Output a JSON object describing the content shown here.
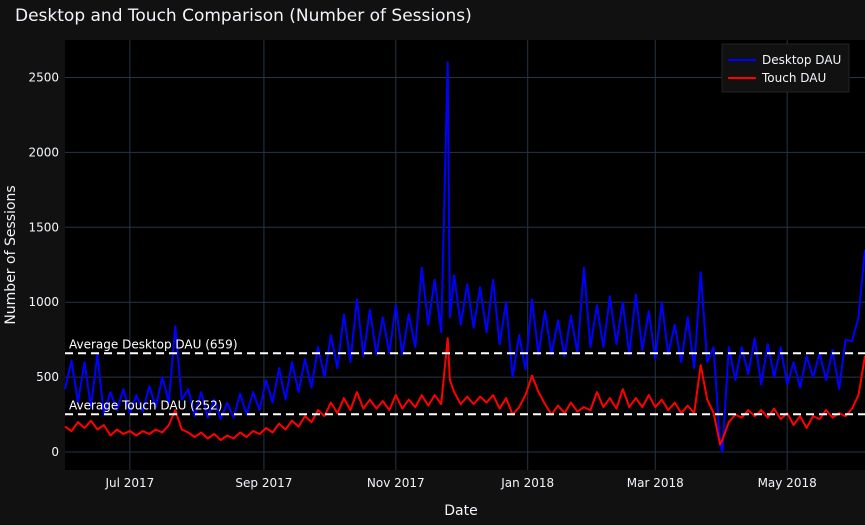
{
  "chart_data": {
    "type": "line",
    "title": "Desktop and Touch Comparison (Number of Sessions)",
    "xlabel": "Date",
    "ylabel": "Number of Sessions",
    "x_range": [
      "2017-06-01",
      "2018-06-06"
    ],
    "ylim": [
      -120,
      2750
    ],
    "x_ticks": [
      {
        "date": "2017-07-01",
        "label": "Jul 2017"
      },
      {
        "date": "2017-09-01",
        "label": "Sep 2017"
      },
      {
        "date": "2017-11-01",
        "label": "Nov 2017"
      },
      {
        "date": "2018-01-01",
        "label": "Jan 2018"
      },
      {
        "date": "2018-03-01",
        "label": "Mar 2018"
      },
      {
        "date": "2018-05-01",
        "label": "May 2018"
      }
    ],
    "y_ticks": [
      0,
      500,
      1000,
      1500,
      2000,
      2500
    ],
    "grid": true,
    "legend_position": "top-right",
    "series": [
      {
        "name": "Desktop DAU",
        "color": "#0000ff",
        "points": [
          [
            "2017-06-01",
            420
          ],
          [
            "2017-06-04",
            610
          ],
          [
            "2017-06-07",
            330
          ],
          [
            "2017-06-10",
            600
          ],
          [
            "2017-06-13",
            300
          ],
          [
            "2017-06-16",
            650
          ],
          [
            "2017-06-19",
            250
          ],
          [
            "2017-06-22",
            400
          ],
          [
            "2017-06-25",
            280
          ],
          [
            "2017-06-28",
            420
          ],
          [
            "2017-07-01",
            260
          ],
          [
            "2017-07-04",
            380
          ],
          [
            "2017-07-07",
            270
          ],
          [
            "2017-07-10",
            440
          ],
          [
            "2017-07-13",
            300
          ],
          [
            "2017-07-16",
            500
          ],
          [
            "2017-07-19",
            330
          ],
          [
            "2017-07-22",
            840
          ],
          [
            "2017-07-25",
            350
          ],
          [
            "2017-07-28",
            420
          ],
          [
            "2017-07-31",
            240
          ],
          [
            "2017-08-03",
            400
          ],
          [
            "2017-08-06",
            230
          ],
          [
            "2017-08-09",
            350
          ],
          [
            "2017-08-12",
            220
          ],
          [
            "2017-08-15",
            330
          ],
          [
            "2017-08-18",
            230
          ],
          [
            "2017-08-21",
            390
          ],
          [
            "2017-08-24",
            250
          ],
          [
            "2017-08-27",
            400
          ],
          [
            "2017-08-30",
            280
          ],
          [
            "2017-09-02",
            480
          ],
          [
            "2017-09-05",
            330
          ],
          [
            "2017-09-08",
            560
          ],
          [
            "2017-09-11",
            350
          ],
          [
            "2017-09-14",
            600
          ],
          [
            "2017-09-17",
            400
          ],
          [
            "2017-09-20",
            620
          ],
          [
            "2017-09-23",
            430
          ],
          [
            "2017-09-26",
            700
          ],
          [
            "2017-09-29",
            500
          ],
          [
            "2017-10-02",
            780
          ],
          [
            "2017-10-05",
            560
          ],
          [
            "2017-10-08",
            920
          ],
          [
            "2017-10-11",
            600
          ],
          [
            "2017-10-14",
            1020
          ],
          [
            "2017-10-17",
            640
          ],
          [
            "2017-10-20",
            950
          ],
          [
            "2017-10-23",
            650
          ],
          [
            "2017-10-26",
            900
          ],
          [
            "2017-10-29",
            660
          ],
          [
            "2017-11-01",
            980
          ],
          [
            "2017-11-04",
            650
          ],
          [
            "2017-11-07",
            920
          ],
          [
            "2017-11-10",
            700
          ],
          [
            "2017-11-13",
            1230
          ],
          [
            "2017-11-16",
            850
          ],
          [
            "2017-11-19",
            1150
          ],
          [
            "2017-11-22",
            800
          ],
          [
            "2017-11-25",
            2600
          ],
          [
            "2017-11-26",
            900
          ],
          [
            "2017-11-28",
            1180
          ],
          [
            "2017-12-01",
            850
          ],
          [
            "2017-12-04",
            1120
          ],
          [
            "2017-12-07",
            830
          ],
          [
            "2017-12-10",
            1100
          ],
          [
            "2017-12-13",
            800
          ],
          [
            "2017-12-16",
            1150
          ],
          [
            "2017-12-19",
            720
          ],
          [
            "2017-12-22",
            1000
          ],
          [
            "2017-12-25",
            500
          ],
          [
            "2017-12-28",
            780
          ],
          [
            "2017-12-31",
            550
          ],
          [
            "2018-01-03",
            1020
          ],
          [
            "2018-01-06",
            650
          ],
          [
            "2018-01-09",
            940
          ],
          [
            "2018-01-12",
            650
          ],
          [
            "2018-01-15",
            880
          ],
          [
            "2018-01-18",
            640
          ],
          [
            "2018-01-21",
            910
          ],
          [
            "2018-01-24",
            660
          ],
          [
            "2018-01-27",
            1230
          ],
          [
            "2018-01-30",
            700
          ],
          [
            "2018-02-02",
            980
          ],
          [
            "2018-02-05",
            700
          ],
          [
            "2018-02-08",
            1040
          ],
          [
            "2018-02-11",
            720
          ],
          [
            "2018-02-14",
            1000
          ],
          [
            "2018-02-17",
            650
          ],
          [
            "2018-02-20",
            1050
          ],
          [
            "2018-02-23",
            680
          ],
          [
            "2018-02-26",
            940
          ],
          [
            "2018-03-01",
            620
          ],
          [
            "2018-03-04",
            1000
          ],
          [
            "2018-03-07",
            650
          ],
          [
            "2018-03-10",
            850
          ],
          [
            "2018-03-13",
            600
          ],
          [
            "2018-03-16",
            900
          ],
          [
            "2018-03-19",
            560
          ],
          [
            "2018-03-22",
            1200
          ],
          [
            "2018-03-25",
            600
          ],
          [
            "2018-03-28",
            700
          ],
          [
            "2018-03-31",
            50
          ],
          [
            "2018-04-01",
            0
          ],
          [
            "2018-04-04",
            700
          ],
          [
            "2018-04-07",
            480
          ],
          [
            "2018-04-10",
            700
          ],
          [
            "2018-04-13",
            520
          ],
          [
            "2018-04-16",
            760
          ],
          [
            "2018-04-19",
            450
          ],
          [
            "2018-04-22",
            720
          ],
          [
            "2018-04-25",
            500
          ],
          [
            "2018-04-28",
            700
          ],
          [
            "2018-05-01",
            450
          ],
          [
            "2018-05-04",
            600
          ],
          [
            "2018-05-07",
            430
          ],
          [
            "2018-05-10",
            640
          ],
          [
            "2018-05-13",
            500
          ],
          [
            "2018-05-16",
            660
          ],
          [
            "2018-05-19",
            480
          ],
          [
            "2018-05-22",
            680
          ],
          [
            "2018-05-25",
            420
          ],
          [
            "2018-05-28",
            750
          ],
          [
            "2018-05-31",
            740
          ],
          [
            "2018-06-03",
            900
          ],
          [
            "2018-06-06",
            1350
          ]
        ]
      },
      {
        "name": "Touch DAU",
        "color": "#ff0000",
        "points": [
          [
            "2017-06-01",
            170
          ],
          [
            "2017-06-04",
            140
          ],
          [
            "2017-06-07",
            200
          ],
          [
            "2017-06-10",
            160
          ],
          [
            "2017-06-13",
            210
          ],
          [
            "2017-06-16",
            150
          ],
          [
            "2017-06-19",
            180
          ],
          [
            "2017-06-22",
            110
          ],
          [
            "2017-06-25",
            150
          ],
          [
            "2017-06-28",
            120
          ],
          [
            "2017-07-01",
            140
          ],
          [
            "2017-07-04",
            110
          ],
          [
            "2017-07-07",
            140
          ],
          [
            "2017-07-10",
            120
          ],
          [
            "2017-07-13",
            150
          ],
          [
            "2017-07-16",
            130
          ],
          [
            "2017-07-19",
            180
          ],
          [
            "2017-07-22",
            280
          ],
          [
            "2017-07-25",
            150
          ],
          [
            "2017-07-28",
            130
          ],
          [
            "2017-07-31",
            100
          ],
          [
            "2017-08-03",
            130
          ],
          [
            "2017-08-06",
            90
          ],
          [
            "2017-08-09",
            120
          ],
          [
            "2017-08-12",
            80
          ],
          [
            "2017-08-15",
            110
          ],
          [
            "2017-08-18",
            90
          ],
          [
            "2017-08-21",
            130
          ],
          [
            "2017-08-24",
            100
          ],
          [
            "2017-08-27",
            140
          ],
          [
            "2017-08-30",
            120
          ],
          [
            "2017-09-02",
            160
          ],
          [
            "2017-09-05",
            130
          ],
          [
            "2017-09-08",
            190
          ],
          [
            "2017-09-11",
            150
          ],
          [
            "2017-09-14",
            210
          ],
          [
            "2017-09-17",
            170
          ],
          [
            "2017-09-20",
            240
          ],
          [
            "2017-09-23",
            200
          ],
          [
            "2017-09-26",
            280
          ],
          [
            "2017-09-29",
            240
          ],
          [
            "2017-10-02",
            330
          ],
          [
            "2017-10-05",
            260
          ],
          [
            "2017-10-08",
            360
          ],
          [
            "2017-10-11",
            280
          ],
          [
            "2017-10-14",
            400
          ],
          [
            "2017-10-17",
            290
          ],
          [
            "2017-10-20",
            350
          ],
          [
            "2017-10-23",
            290
          ],
          [
            "2017-10-26",
            340
          ],
          [
            "2017-10-29",
            280
          ],
          [
            "2017-11-01",
            380
          ],
          [
            "2017-11-04",
            290
          ],
          [
            "2017-11-07",
            350
          ],
          [
            "2017-11-10",
            300
          ],
          [
            "2017-11-13",
            380
          ],
          [
            "2017-11-16",
            310
          ],
          [
            "2017-11-19",
            380
          ],
          [
            "2017-11-22",
            320
          ],
          [
            "2017-11-25",
            760
          ],
          [
            "2017-11-26",
            480
          ],
          [
            "2017-11-28",
            400
          ],
          [
            "2017-12-01",
            320
          ],
          [
            "2017-12-04",
            370
          ],
          [
            "2017-12-07",
            320
          ],
          [
            "2017-12-10",
            370
          ],
          [
            "2017-12-13",
            330
          ],
          [
            "2017-12-16",
            380
          ],
          [
            "2017-12-19",
            290
          ],
          [
            "2017-12-22",
            360
          ],
          [
            "2017-12-25",
            250
          ],
          [
            "2017-12-28",
            300
          ],
          [
            "2017-12-31",
            380
          ],
          [
            "2018-01-03",
            510
          ],
          [
            "2018-01-06",
            400
          ],
          [
            "2018-01-09",
            320
          ],
          [
            "2018-01-12",
            250
          ],
          [
            "2018-01-15",
            310
          ],
          [
            "2018-01-18",
            260
          ],
          [
            "2018-01-21",
            330
          ],
          [
            "2018-01-24",
            270
          ],
          [
            "2018-01-27",
            300
          ],
          [
            "2018-01-30",
            280
          ],
          [
            "2018-02-02",
            400
          ],
          [
            "2018-02-05",
            300
          ],
          [
            "2018-02-08",
            360
          ],
          [
            "2018-02-11",
            290
          ],
          [
            "2018-02-14",
            420
          ],
          [
            "2018-02-17",
            300
          ],
          [
            "2018-02-20",
            360
          ],
          [
            "2018-02-23",
            300
          ],
          [
            "2018-02-26",
            380
          ],
          [
            "2018-03-01",
            300
          ],
          [
            "2018-03-04",
            350
          ],
          [
            "2018-03-07",
            280
          ],
          [
            "2018-03-10",
            330
          ],
          [
            "2018-03-13",
            260
          ],
          [
            "2018-03-16",
            310
          ],
          [
            "2018-03-19",
            260
          ],
          [
            "2018-03-22",
            580
          ],
          [
            "2018-03-25",
            350
          ],
          [
            "2018-03-28",
            260
          ],
          [
            "2018-03-31",
            50
          ],
          [
            "2018-04-01",
            80
          ],
          [
            "2018-04-04",
            200
          ],
          [
            "2018-04-07",
            250
          ],
          [
            "2018-04-10",
            230
          ],
          [
            "2018-04-13",
            280
          ],
          [
            "2018-04-16",
            240
          ],
          [
            "2018-04-19",
            280
          ],
          [
            "2018-04-22",
            230
          ],
          [
            "2018-04-25",
            290
          ],
          [
            "2018-04-28",
            220
          ],
          [
            "2018-05-01",
            260
          ],
          [
            "2018-05-04",
            180
          ],
          [
            "2018-05-07",
            240
          ],
          [
            "2018-05-10",
            160
          ],
          [
            "2018-05-13",
            240
          ],
          [
            "2018-05-16",
            220
          ],
          [
            "2018-05-19",
            280
          ],
          [
            "2018-05-22",
            230
          ],
          [
            "2018-05-25",
            260
          ],
          [
            "2018-05-28",
            240
          ],
          [
            "2018-05-31",
            290
          ],
          [
            "2018-06-03",
            380
          ],
          [
            "2018-06-06",
            640
          ]
        ]
      }
    ],
    "reference_lines": [
      {
        "label": "Average Desktop DAU (659)",
        "value": 659,
        "color": "#ffffff"
      },
      {
        "label": "Average Touch DAU (252)",
        "value": 252,
        "color": "#ffffff"
      }
    ]
  }
}
